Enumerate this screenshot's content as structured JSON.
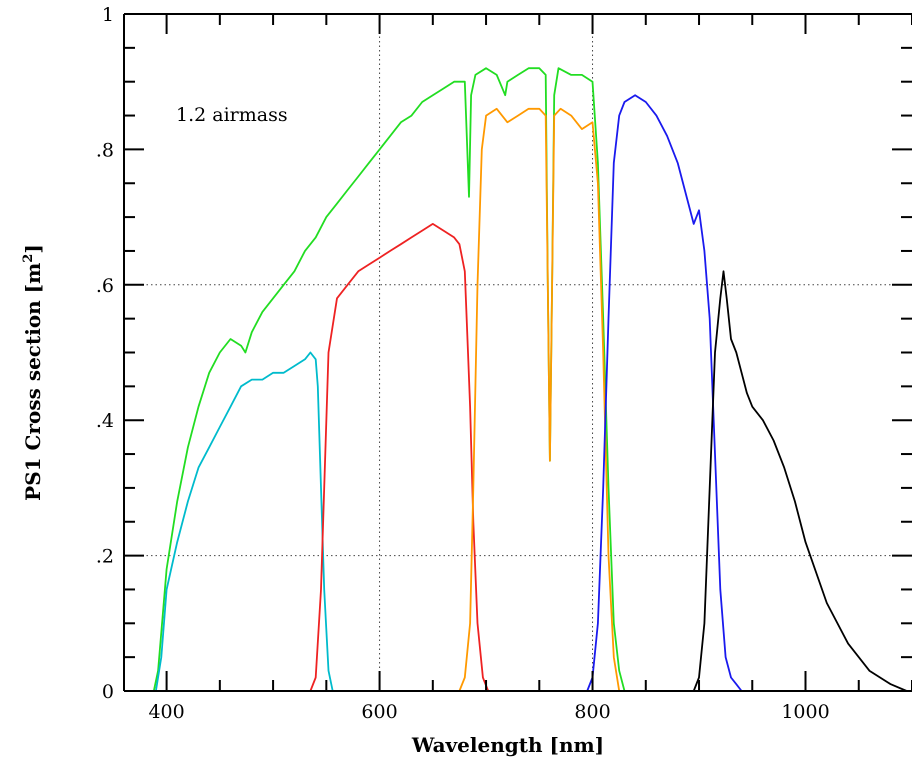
{
  "chart_data": {
    "type": "line",
    "title": "",
    "xlabel": "Wavelength [nm]",
    "ylabel": "PS1 Cross section [m²]",
    "ylabel_base": "PS1 Cross section [m",
    "ylabel_sup": "2",
    "ylabel_close": "]",
    "annotation": "1.2 airmass",
    "xlim": [
      360,
      1100
    ],
    "ylim": [
      0,
      1
    ],
    "xticks_major": [
      400,
      600,
      800,
      1000
    ],
    "xtick_labels": [
      "400",
      "600",
      "800",
      "1000"
    ],
    "yticks_major": [
      0,
      0.2,
      0.4,
      0.6,
      0.8,
      1
    ],
    "ytick_labels": [
      "0",
      ".2",
      ".4",
      ".6",
      ".8",
      "1"
    ],
    "grid": {
      "x": [
        600,
        800
      ],
      "y": [
        0.2,
        0.6
      ],
      "style": "dotted"
    },
    "series": [
      {
        "color": "#22dd22",
        "x": [
          388,
          392,
          400,
          410,
          420,
          430,
          440,
          450,
          460,
          470,
          474,
          480,
          490,
          500,
          510,
          520,
          530,
          540,
          550,
          560,
          570,
          580,
          590,
          600,
          610,
          620,
          630,
          640,
          650,
          660,
          670,
          680,
          684,
          686,
          690,
          700,
          710,
          718,
          720,
          730,
          740,
          750,
          756,
          758,
          760,
          762,
          764,
          768,
          780,
          790,
          800,
          805,
          810,
          815,
          820,
          825,
          830
        ],
        "y": [
          0.0,
          0.03,
          0.18,
          0.28,
          0.36,
          0.42,
          0.47,
          0.5,
          0.52,
          0.51,
          0.5,
          0.53,
          0.56,
          0.58,
          0.6,
          0.62,
          0.65,
          0.67,
          0.7,
          0.72,
          0.74,
          0.76,
          0.78,
          0.8,
          0.82,
          0.84,
          0.85,
          0.87,
          0.88,
          0.89,
          0.9,
          0.9,
          0.73,
          0.88,
          0.91,
          0.92,
          0.91,
          0.88,
          0.9,
          0.91,
          0.92,
          0.92,
          0.91,
          0.6,
          0.34,
          0.6,
          0.88,
          0.92,
          0.91,
          0.91,
          0.9,
          0.78,
          0.55,
          0.3,
          0.1,
          0.03,
          0.0
        ]
      },
      {
        "color": "#00bbcc",
        "x": [
          390,
          395,
          400,
          410,
          420,
          430,
          440,
          450,
          460,
          470,
          480,
          490,
          500,
          510,
          520,
          530,
          535,
          540,
          542,
          545,
          548,
          552,
          556
        ],
        "y": [
          0.0,
          0.05,
          0.15,
          0.22,
          0.28,
          0.33,
          0.36,
          0.39,
          0.42,
          0.45,
          0.46,
          0.46,
          0.47,
          0.47,
          0.48,
          0.49,
          0.5,
          0.49,
          0.45,
          0.3,
          0.15,
          0.03,
          0.0
        ]
      },
      {
        "color": "#ee2222",
        "x": [
          535,
          540,
          545,
          548,
          552,
          560,
          570,
          580,
          590,
          600,
          610,
          620,
          630,
          640,
          650,
          660,
          670,
          675,
          680,
          683,
          685,
          688,
          692,
          697,
          702
        ],
        "y": [
          0.0,
          0.02,
          0.15,
          0.3,
          0.5,
          0.58,
          0.6,
          0.62,
          0.63,
          0.64,
          0.65,
          0.66,
          0.67,
          0.68,
          0.69,
          0.68,
          0.67,
          0.66,
          0.62,
          0.5,
          0.42,
          0.25,
          0.1,
          0.02,
          0.0
        ]
      },
      {
        "color": "#ff9900",
        "x": [
          675,
          680,
          685,
          688,
          692,
          696,
          700,
          710,
          720,
          730,
          740,
          750,
          756,
          758,
          760,
          762,
          764,
          770,
          780,
          790,
          800,
          805,
          810,
          815,
          820,
          825
        ],
        "y": [
          0.0,
          0.02,
          0.1,
          0.3,
          0.6,
          0.8,
          0.85,
          0.86,
          0.84,
          0.85,
          0.86,
          0.86,
          0.85,
          0.6,
          0.34,
          0.6,
          0.85,
          0.86,
          0.85,
          0.83,
          0.84,
          0.75,
          0.5,
          0.2,
          0.05,
          0.0
        ]
      },
      {
        "color": "#1a1aee",
        "x": [
          795,
          800,
          805,
          810,
          815,
          820,
          825,
          830,
          840,
          850,
          860,
          870,
          880,
          890,
          895,
          900,
          905,
          910,
          915,
          920,
          925,
          930,
          935,
          940
        ],
        "y": [
          0.0,
          0.02,
          0.1,
          0.3,
          0.55,
          0.78,
          0.85,
          0.87,
          0.88,
          0.87,
          0.85,
          0.82,
          0.78,
          0.72,
          0.69,
          0.71,
          0.65,
          0.55,
          0.35,
          0.15,
          0.05,
          0.02,
          0.01,
          0.0
        ]
      },
      {
        "color": "#000000",
        "x": [
          895,
          900,
          905,
          910,
          915,
          920,
          923,
          926,
          930,
          935,
          940,
          945,
          950,
          955,
          960,
          970,
          980,
          990,
          1000,
          1020,
          1040,
          1060,
          1080,
          1095
        ],
        "y": [
          0.0,
          0.02,
          0.1,
          0.3,
          0.5,
          0.58,
          0.62,
          0.58,
          0.52,
          0.5,
          0.47,
          0.44,
          0.42,
          0.41,
          0.4,
          0.37,
          0.33,
          0.28,
          0.22,
          0.13,
          0.07,
          0.03,
          0.01,
          0.0
        ]
      }
    ]
  }
}
